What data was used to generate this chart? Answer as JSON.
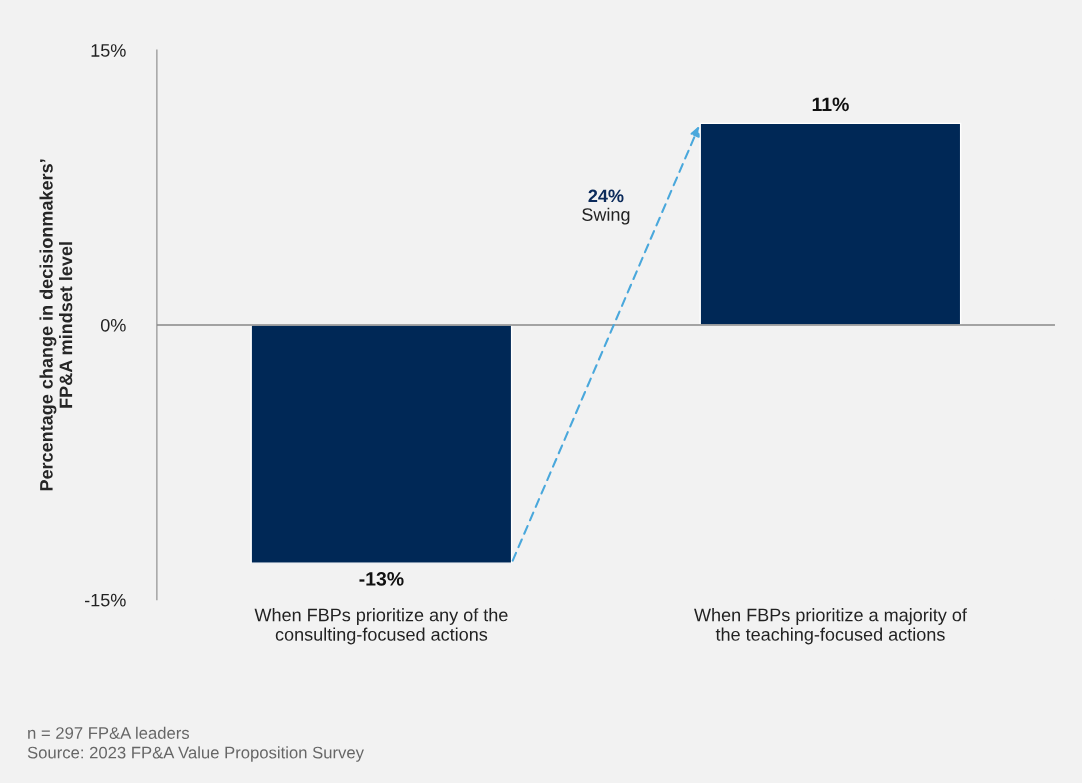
{
  "chart_data": {
    "type": "bar",
    "ylabel": "Percentage change in decisionmakers’\nFP&A mindset level",
    "categories": [
      "When FBPs prioritize any of the\nconsulting-focused actions",
      "When FBPs prioritize a majority of\nthe teaching-focused actions"
    ],
    "values": [
      -13,
      11
    ],
    "color": "#002856",
    "value_labels": [
      "-13%",
      "11%"
    ],
    "ylim": [
      -15,
      15
    ],
    "yticks": [
      {
        "value": 15,
        "label": "15%"
      },
      {
        "value": 0,
        "label": "0%"
      },
      {
        "value": -15,
        "label": "-15%"
      }
    ],
    "ref_lines": [
      {
        "axis": "y",
        "value": 0,
        "color": "#888888"
      }
    ],
    "annotations": [
      "24%",
      "Swing",
      "n = 297 FP&A leaders",
      "Source: 2023 FP&A Value Proposition Survey"
    ]
  }
}
